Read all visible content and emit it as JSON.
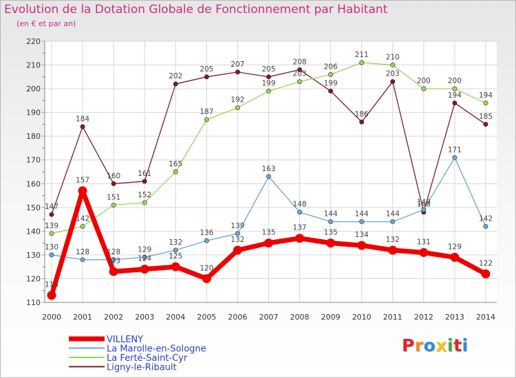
{
  "title": "Evolution de la Dotation Globale de Fonctionnement par Habitant",
  "subtitle": "(en € et par an)",
  "logo": {
    "text": "Proxiti",
    "colors": [
      "#e2242b",
      "#f08c1e",
      "#2b8fd6",
      "#f0c419",
      "#44a744",
      "#e2242b",
      "#2b8fd6"
    ]
  },
  "chart_data": {
    "type": "line",
    "x": [
      "2000",
      "2001",
      "2002",
      "2003",
      "2004",
      "2005",
      "2006",
      "2007",
      "2008",
      "2009",
      "2010",
      "2011",
      "2012",
      "2013",
      "2014"
    ],
    "ylim": [
      110,
      220
    ],
    "yticks": [
      110,
      120,
      130,
      140,
      150,
      160,
      170,
      180,
      190,
      200,
      210,
      220
    ],
    "grid": true,
    "legend_position": "bottom-left",
    "series": [
      {
        "name": "Ligny-le-Ribault",
        "color": "#7a1e1e",
        "width": 1.3,
        "values": [
          147,
          184,
          160,
          161,
          202,
          205,
          207,
          205,
          208,
          199,
          186,
          203,
          148,
          194,
          185
        ]
      },
      {
        "name": "La Ferté-Saint-Cyr",
        "color": "#96d65a",
        "width": 1.3,
        "values": [
          139,
          142,
          151,
          152,
          165,
          187,
          192,
          199,
          203,
          206,
          211,
          210,
          200,
          200,
          194
        ]
      },
      {
        "name": "La Marolle-en-Sologne",
        "color": "#6aa6d6",
        "width": 1.3,
        "values": [
          130,
          128,
          128,
          129,
          132,
          136,
          139,
          163,
          148,
          144,
          144,
          144,
          149,
          171,
          142
        ]
      },
      {
        "name": "VILLENY",
        "color": "#ee0000",
        "width": 7,
        "values": [
          113,
          157,
          123,
          124,
          125,
          120,
          132,
          135,
          137,
          135,
          134,
          132,
          131,
          129,
          122
        ]
      }
    ],
    "legend_order": [
      "VILLENY",
      "La Marolle-en-Sologne",
      "La Ferté-Saint-Cyr",
      "Ligny-le-Ribault"
    ]
  }
}
